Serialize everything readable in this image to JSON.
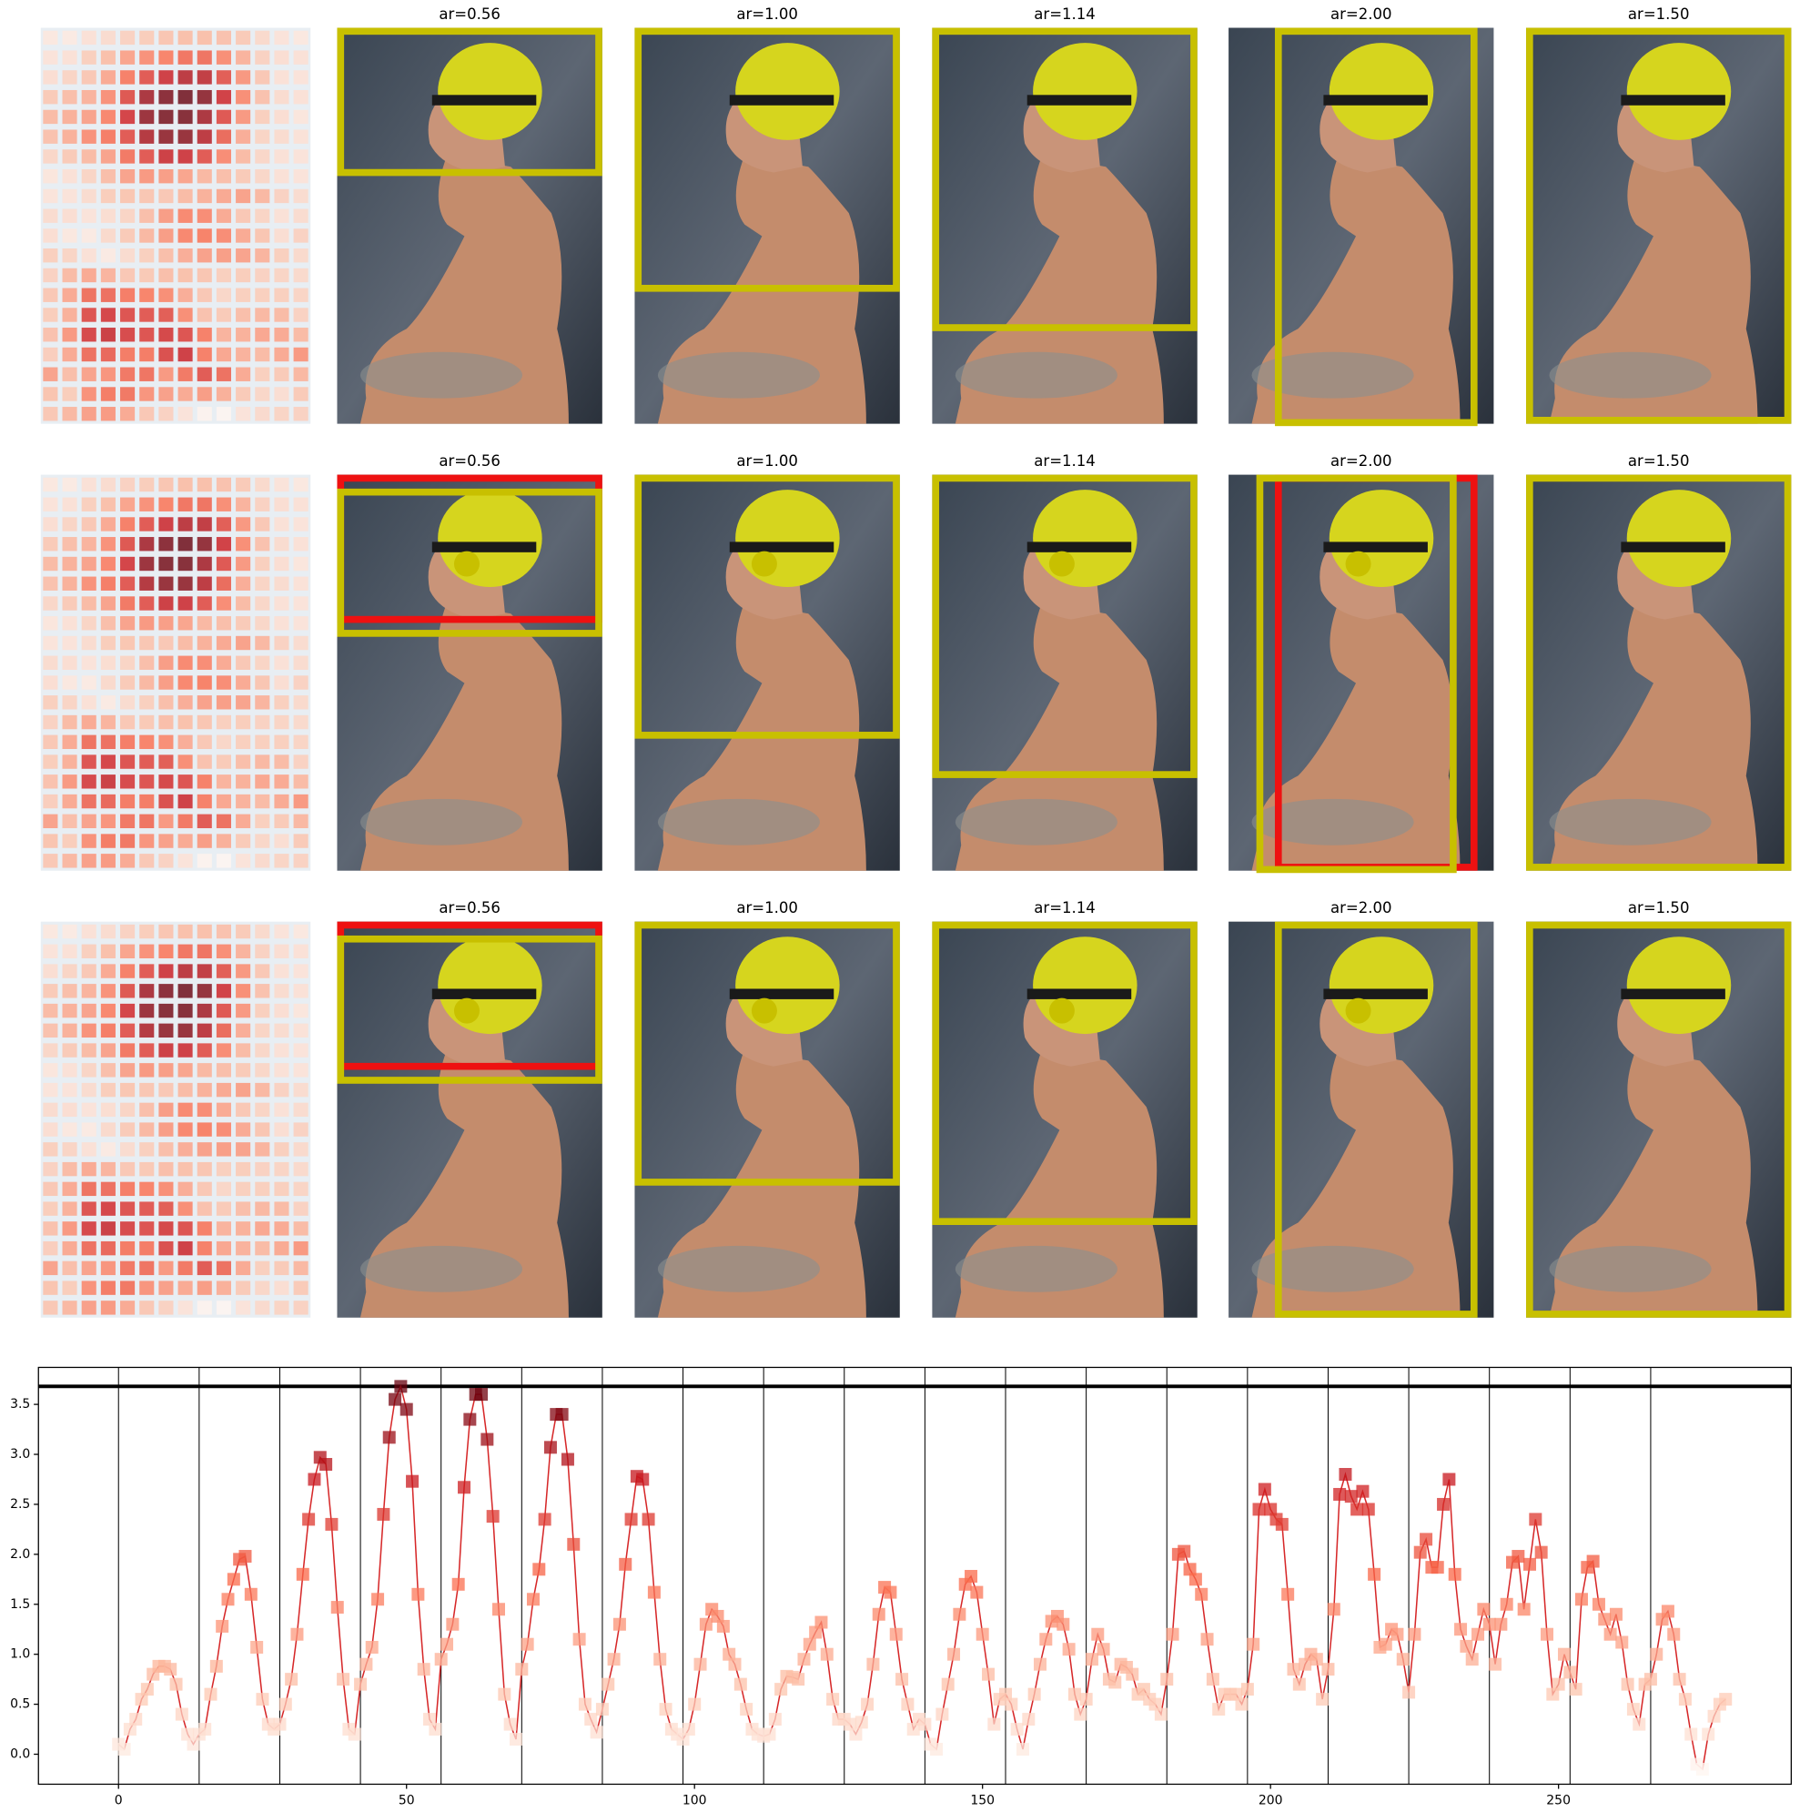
{
  "figure": {
    "panel_titles": [
      [
        "ar=0.56",
        "ar=1.00",
        "ar=1.14",
        "ar=2.00",
        "ar=1.50"
      ],
      [
        "ar=0.56",
        "ar=1.00",
        "ar=1.14",
        "ar=2.00",
        "ar=1.50"
      ],
      [
        "ar=0.56",
        "ar=1.00",
        "ar=1.14",
        "ar=2.00",
        "ar=1.50"
      ]
    ]
  },
  "chart_data": {
    "type": "line",
    "color": "#d62728",
    "x": [
      0,
      1,
      2,
      3,
      4,
      5,
      6,
      7,
      8,
      9,
      10,
      11,
      12,
      13,
      14,
      15,
      16,
      17,
      18,
      19,
      20,
      21,
      22,
      23,
      24,
      25,
      26,
      27,
      28,
      29,
      30,
      31,
      32,
      33,
      34,
      35,
      36,
      37,
      38,
      39,
      40,
      41,
      42,
      43,
      44,
      45,
      46,
      47,
      48,
      49,
      50,
      51,
      52,
      53,
      54,
      55,
      56,
      57,
      58,
      59,
      60,
      61,
      62,
      63,
      64,
      65,
      66,
      67,
      68,
      69,
      70,
      71,
      72,
      73,
      74,
      75,
      76,
      77,
      78,
      79,
      80,
      81,
      82,
      83,
      84,
      85,
      86,
      87,
      88,
      89,
      90,
      91,
      92,
      93,
      94,
      95,
      96,
      97,
      98,
      99,
      100,
      101,
      102,
      103,
      104,
      105,
      106,
      107,
      108,
      109,
      110,
      111,
      112,
      113,
      114,
      115,
      116,
      117,
      118,
      119,
      120,
      121,
      122,
      123,
      124,
      125,
      126,
      127,
      128,
      129,
      130,
      131,
      132,
      133,
      134,
      135,
      136,
      137,
      138,
      139,
      140,
      141,
      142,
      143,
      144,
      145,
      146,
      147,
      148,
      149,
      150,
      151,
      152,
      153,
      154,
      155,
      156,
      157,
      158,
      159,
      160,
      161,
      162,
      163,
      164,
      165,
      166,
      167,
      168,
      169,
      170,
      171,
      172,
      173,
      174,
      175,
      176,
      177,
      178,
      179,
      180,
      181,
      182,
      183,
      184,
      185,
      186,
      187,
      188,
      189,
      190,
      191,
      192,
      193,
      194,
      195,
      196,
      197,
      198,
      199,
      200,
      201,
      202,
      203,
      204,
      205,
      206,
      207,
      208,
      209,
      210,
      211,
      212,
      213,
      214,
      215,
      216,
      217,
      218,
      219,
      220,
      221,
      222,
      223,
      224,
      225,
      226,
      227,
      228,
      229,
      230,
      231,
      232,
      233,
      234,
      235,
      236,
      237,
      238,
      239,
      240,
      241,
      242,
      243,
      244,
      245,
      246,
      247,
      248,
      249,
      250,
      251,
      252,
      253,
      254,
      255,
      256,
      257,
      258,
      259,
      260,
      261,
      262,
      263,
      264,
      265,
      266,
      267,
      268,
      269,
      270,
      271,
      272,
      273,
      274,
      275,
      276,
      277,
      278,
      279
    ],
    "series": [
      {
        "values": [
          0.1,
          0.05,
          0.25,
          0.35,
          0.55,
          0.65,
          0.8,
          0.88,
          0.88,
          0.85,
          0.7,
          0.4,
          0.2,
          0.1,
          0.2,
          0.25,
          0.6,
          0.88,
          1.28,
          1.55,
          1.75,
          1.95,
          1.98,
          1.6,
          1.07,
          0.55,
          0.3,
          0.25,
          0.3,
          0.5,
          0.75,
          1.2,
          1.8,
          2.35,
          2.75,
          2.97,
          2.9,
          2.3,
          1.47,
          0.75,
          0.25,
          0.2,
          0.7,
          0.9,
          1.07,
          1.55,
          2.4,
          3.17,
          3.55,
          3.68,
          3.45,
          2.73,
          1.6,
          0.85,
          0.35,
          0.25,
          0.95,
          1.1,
          1.3,
          1.7,
          2.67,
          3.35,
          3.6,
          3.6,
          3.15,
          2.38,
          1.45,
          0.6,
          0.3,
          0.15,
          0.85,
          1.1,
          1.55,
          1.85,
          2.35,
          3.07,
          3.4,
          3.4,
          2.95,
          2.1,
          1.15,
          0.5,
          0.35,
          0.22,
          0.45,
          0.7,
          0.95,
          1.3,
          1.9,
          2.35,
          2.78,
          2.75,
          2.35,
          1.62,
          0.95,
          0.45,
          0.25,
          0.2,
          0.15,
          0.25,
          0.5,
          0.9,
          1.3,
          1.45,
          1.38,
          1.28,
          1.0,
          0.9,
          0.7,
          0.45,
          0.25,
          0.2,
          0.18,
          0.2,
          0.35,
          0.65,
          0.78,
          0.77,
          0.75,
          0.95,
          1.1,
          1.22,
          1.32,
          1.0,
          0.55,
          0.35,
          0.35,
          0.3,
          0.2,
          0.32,
          0.5,
          0.9,
          1.4,
          1.67,
          1.62,
          1.2,
          0.75,
          0.5,
          0.25,
          0.35,
          0.3,
          0.1,
          0.05,
          0.4,
          0.7,
          1.0,
          1.4,
          1.7,
          1.78,
          1.62,
          1.2,
          0.8,
          0.3,
          0.55,
          0.6,
          0.5,
          0.25,
          0.05,
          0.35,
          0.6,
          0.9,
          1.15,
          1.33,
          1.38,
          1.3,
          1.05,
          0.6,
          0.4,
          0.55,
          0.95,
          1.2,
          1.05,
          0.75,
          0.72,
          0.9,
          0.87,
          0.8,
          0.6,
          0.65,
          0.55,
          0.5,
          0.4,
          0.75,
          1.2,
          2.0,
          2.03,
          1.85,
          1.75,
          1.6,
          1.15,
          0.75,
          0.45,
          0.6,
          0.6,
          0.6,
          0.5,
          0.65,
          1.1,
          2.45,
          2.65,
          2.45,
          2.35,
          2.3,
          1.6,
          0.85,
          0.7,
          0.9,
          1.0,
          0.95,
          0.55,
          0.85,
          1.45,
          2.6,
          2.8,
          2.58,
          2.45,
          2.63,
          2.45,
          1.8,
          1.07,
          1.1,
          1.25,
          1.2,
          0.95,
          0.62,
          1.2,
          2.02,
          2.15,
          1.87,
          1.87,
          2.5,
          2.75,
          1.8,
          1.25,
          1.08,
          0.95,
          1.2,
          1.45,
          1.3,
          0.9,
          1.3,
          1.5,
          1.92,
          1.98,
          1.45,
          1.9,
          2.35,
          2.02,
          1.2,
          0.6,
          0.7,
          1.0,
          0.82,
          0.65,
          1.55,
          1.87,
          1.93,
          1.5,
          1.35,
          1.2,
          1.4,
          1.12,
          0.7,
          0.45,
          0.3,
          0.7,
          0.75,
          1.0,
          1.35,
          1.43,
          1.2,
          0.75,
          0.55,
          0.2,
          -0.1,
          -0.15,
          0.2,
          0.38,
          0.5,
          0.55
        ]
      }
    ],
    "hline": 3.68,
    "vlines": [
      0,
      14,
      28,
      42,
      56,
      70,
      84,
      98,
      112,
      126,
      140,
      154,
      168,
      182,
      196,
      210,
      224,
      238,
      252,
      266
    ],
    "xlim": [
      -13.9,
      290.4
    ],
    "ylim": [
      -0.3,
      3.87
    ],
    "xticks": [
      0,
      50,
      100,
      150,
      200,
      250
    ],
    "yticks": [
      {
        "value": 0,
        "label": "0.0"
      },
      {
        "value": 0.5,
        "label": "0.5"
      },
      {
        "value": 1,
        "label": "1.0"
      },
      {
        "value": 1.5,
        "label": "1.5"
      },
      {
        "value": 2,
        "label": "2.0"
      },
      {
        "value": 2.5,
        "label": "2.5"
      },
      {
        "value": 3,
        "label": "3.0"
      },
      {
        "value": 3.5,
        "label": "3.5"
      }
    ],
    "heatmap_cols": 14
  }
}
